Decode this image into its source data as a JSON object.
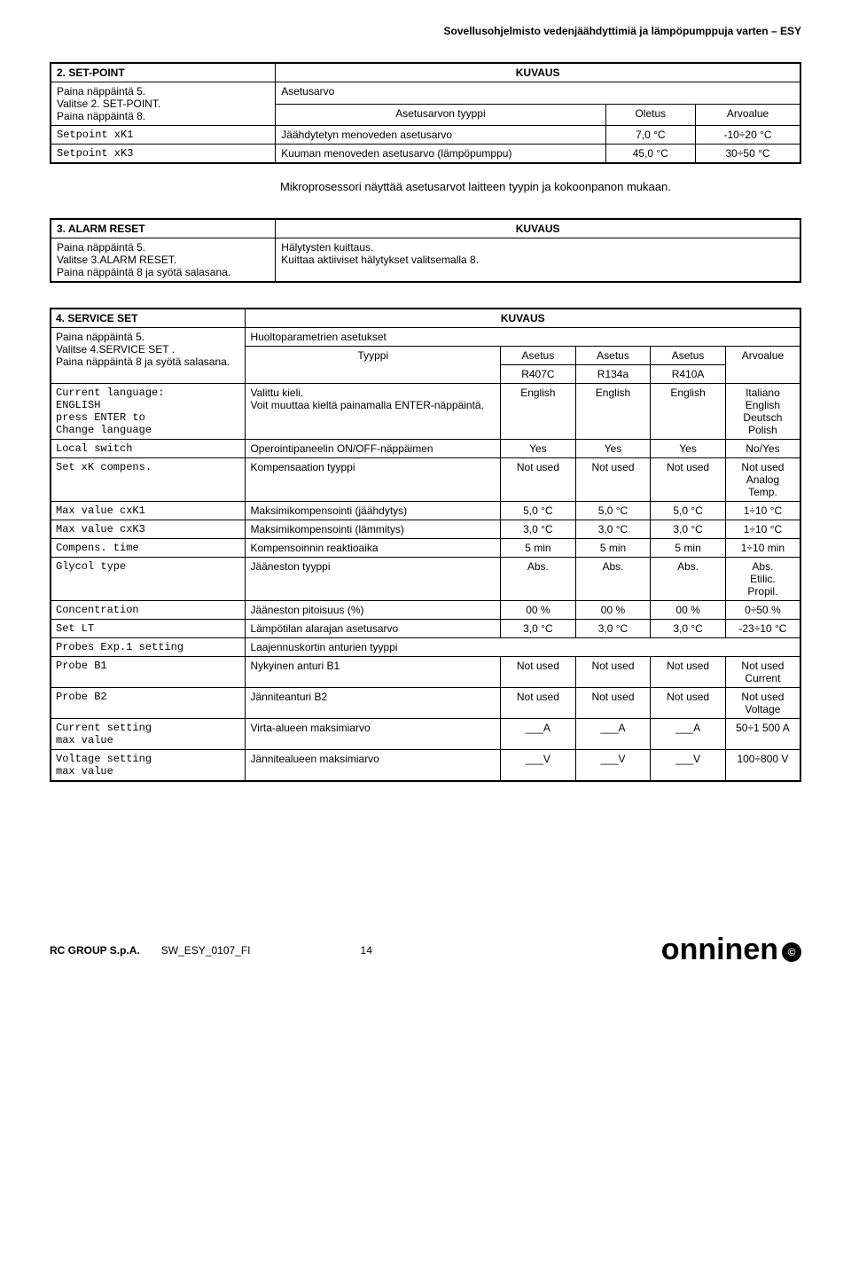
{
  "page": {
    "header": "Sovellusohjelmisto vedenjäähdyttimiä ja lämpöpumppuja varten – ESY",
    "footer_left1": "RC GROUP S.p.A.",
    "footer_left2": "SW_ESY_0107_FI",
    "page_number": "14",
    "logo_text": "onninen",
    "logo_badge": "©"
  },
  "table2": {
    "title": "2. SET-POINT",
    "kuvaus": "KUVAUS",
    "left_text": "Paina näppäintä 5.\nValitse 2. SET-POINT.\nPaina näppäintä 8.",
    "asetusarvo": "Asetusarvo",
    "asetus_tyyppi": "Asetusarvon tyyppi",
    "oletus": "Oletus",
    "arvoalue": "Arvoalue",
    "rows": [
      {
        "id": "Setpoint xK1",
        "desc": "Jäähdytetyn menoveden asetusarvo",
        "def": "7,0 °C",
        "range": "-10÷20 °C"
      },
      {
        "id": "Setpoint xK3",
        "desc": "Kuuman menoveden asetusarvo (lämpöpumppu)",
        "def": "45,0 °C",
        "range": "30÷50 °C"
      }
    ],
    "note": "Mikroprosessori näyttää asetusarvot laitteen tyypin ja kokoonpanon mukaan."
  },
  "table3": {
    "title": "3. ALARM RESET",
    "kuvaus": "KUVAUS",
    "left_text": "Paina näppäintä 5.\nValitse 3.ALARM RESET.\nPaina näppäintä 8 ja syötä salasana.",
    "desc": "Hälytysten kuittaus.\nKuittaa aktiiviset hälytykset valitsemalla 8."
  },
  "table4": {
    "title": "4. SERVICE SET",
    "kuvaus": "KUVAUS",
    "left_text": "Paina näppäintä 5.\nValitse 4.SERVICE SET .\nPaina näppäintä 8 ja syötä salasana.",
    "huolto": "Huoltoparametrien asetukset",
    "tyyppi": "Tyyppi",
    "col_asetus": "Asetus",
    "col_r407c": "R407C",
    "col_r134a": "R134a",
    "col_r410a": "R410A",
    "col_arvo": "Arvoalue",
    "rows": [
      {
        "id": "Current language:\n   ENGLISH\npress ENTER to\nChange language",
        "desc": "Valittu kieli.\nVoit muuttaa kieltä painamalla ENTER-näppäintä.",
        "v1": "English",
        "v2": "English",
        "v3": "English",
        "range": "Italiano\nEnglish\nDeutsch\nPolish"
      },
      {
        "id": "Local switch",
        "desc": "Operointipaneelin ON/OFF-näppäimen",
        "v1": "Yes",
        "v2": "Yes",
        "v3": "Yes",
        "range": "No/Yes"
      },
      {
        "id": "Set xK compens.",
        "desc": "Kompensaation tyyppi",
        "v1": "Not used",
        "v2": "Not used",
        "v3": "Not used",
        "range": "Not used\nAnalog\nTemp."
      },
      {
        "id": "Max value cxK1",
        "desc": "Maksimikompensointi (jäähdytys)",
        "v1": "5,0 °C",
        "v2": "5,0 °C",
        "v3": "5,0 °C",
        "range": "1÷10 °C"
      },
      {
        "id": "Max value cxK3",
        "desc": "Maksimikompensointi (lämmitys)",
        "v1": "3,0 °C",
        "v2": "3,0 °C",
        "v3": "3,0 °C",
        "range": "1÷10 °C"
      },
      {
        "id": "Compens. time",
        "desc": "Kompensoinnin reaktioaika",
        "v1": "5 min",
        "v2": "5 min",
        "v3": "5 min",
        "range": "1÷10 min"
      },
      {
        "id": "Glycol type",
        "desc": "Jääneston tyyppi",
        "v1": "Abs.",
        "v2": "Abs.",
        "v3": "Abs.",
        "range": "Abs.\nEtilic.\nPropil."
      },
      {
        "id": "Concentration",
        "desc": "Jääneston pitoisuus (%)",
        "v1": "00 %",
        "v2": "00 %",
        "v3": "00 %",
        "range": "0÷50 %"
      },
      {
        "id": "Set LT",
        "desc": "Lämpötilan alarajan asetusarvo",
        "v1": "3,0 °C",
        "v2": "3,0 °C",
        "v3": "3,0 °C",
        "range": "-23÷10 °C"
      },
      {
        "id": "Probes Exp.1 setting",
        "desc": "Laajennuskortin anturien tyyppi",
        "v1": "",
        "v2": "",
        "v3": "",
        "range": "",
        "merge": true
      },
      {
        "id": "Probe B1",
        "desc": "Nykyinen anturi B1",
        "v1": "Not used",
        "v2": "Not used",
        "v3": "Not used",
        "range": "Not used\nCurrent"
      },
      {
        "id": "Probe B2",
        "desc": "Jänniteanturi B2",
        "v1": "Not used",
        "v2": "Not used",
        "v3": "Not used",
        "range": "Not used\nVoltage"
      },
      {
        "id": "Current setting\nmax value",
        "desc": "Virta-alueen maksimiarvo",
        "v1": "___A",
        "v2": "___A",
        "v3": "___A",
        "range": "50÷1 500 A"
      },
      {
        "id": "Voltage setting\nmax value",
        "desc": "Jännitealueen maksimiarvo",
        "v1": "___V",
        "v2": "___V",
        "v3": "___V",
        "range": "100÷800 V"
      }
    ]
  }
}
